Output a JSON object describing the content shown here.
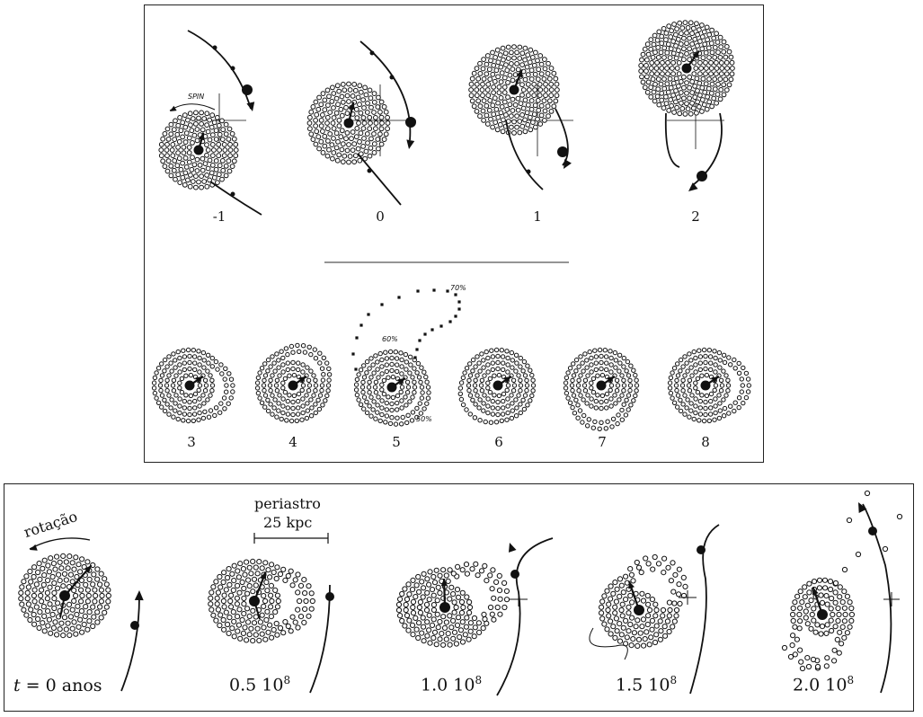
{
  "top_figure": {
    "labels": {
      "spin": "SPIN"
    },
    "frames_row1": [
      "-1",
      "0",
      "1",
      "2"
    ],
    "frames_row2": [
      "3",
      "4",
      "5",
      "6",
      "7",
      "8"
    ],
    "percent_markers": [
      "70%",
      "60%",
      "50%"
    ]
  },
  "bottom_figure": {
    "rotation_label": "rotação",
    "periastro_label": "periastro",
    "distance_label": "25 kpc",
    "time_labels": [
      {
        "var": "t",
        "rest": " = 0 anos"
      },
      {
        "base": "0.5 10",
        "exp": "8"
      },
      {
        "base": "1.0 10",
        "exp": "8"
      },
      {
        "base": "1.5 10",
        "exp": "8"
      },
      {
        "base": "2.0 10",
        "exp": "8"
      }
    ]
  },
  "colors": {
    "ink": "#111111",
    "background": "#ffffff",
    "rule": "#555555"
  }
}
